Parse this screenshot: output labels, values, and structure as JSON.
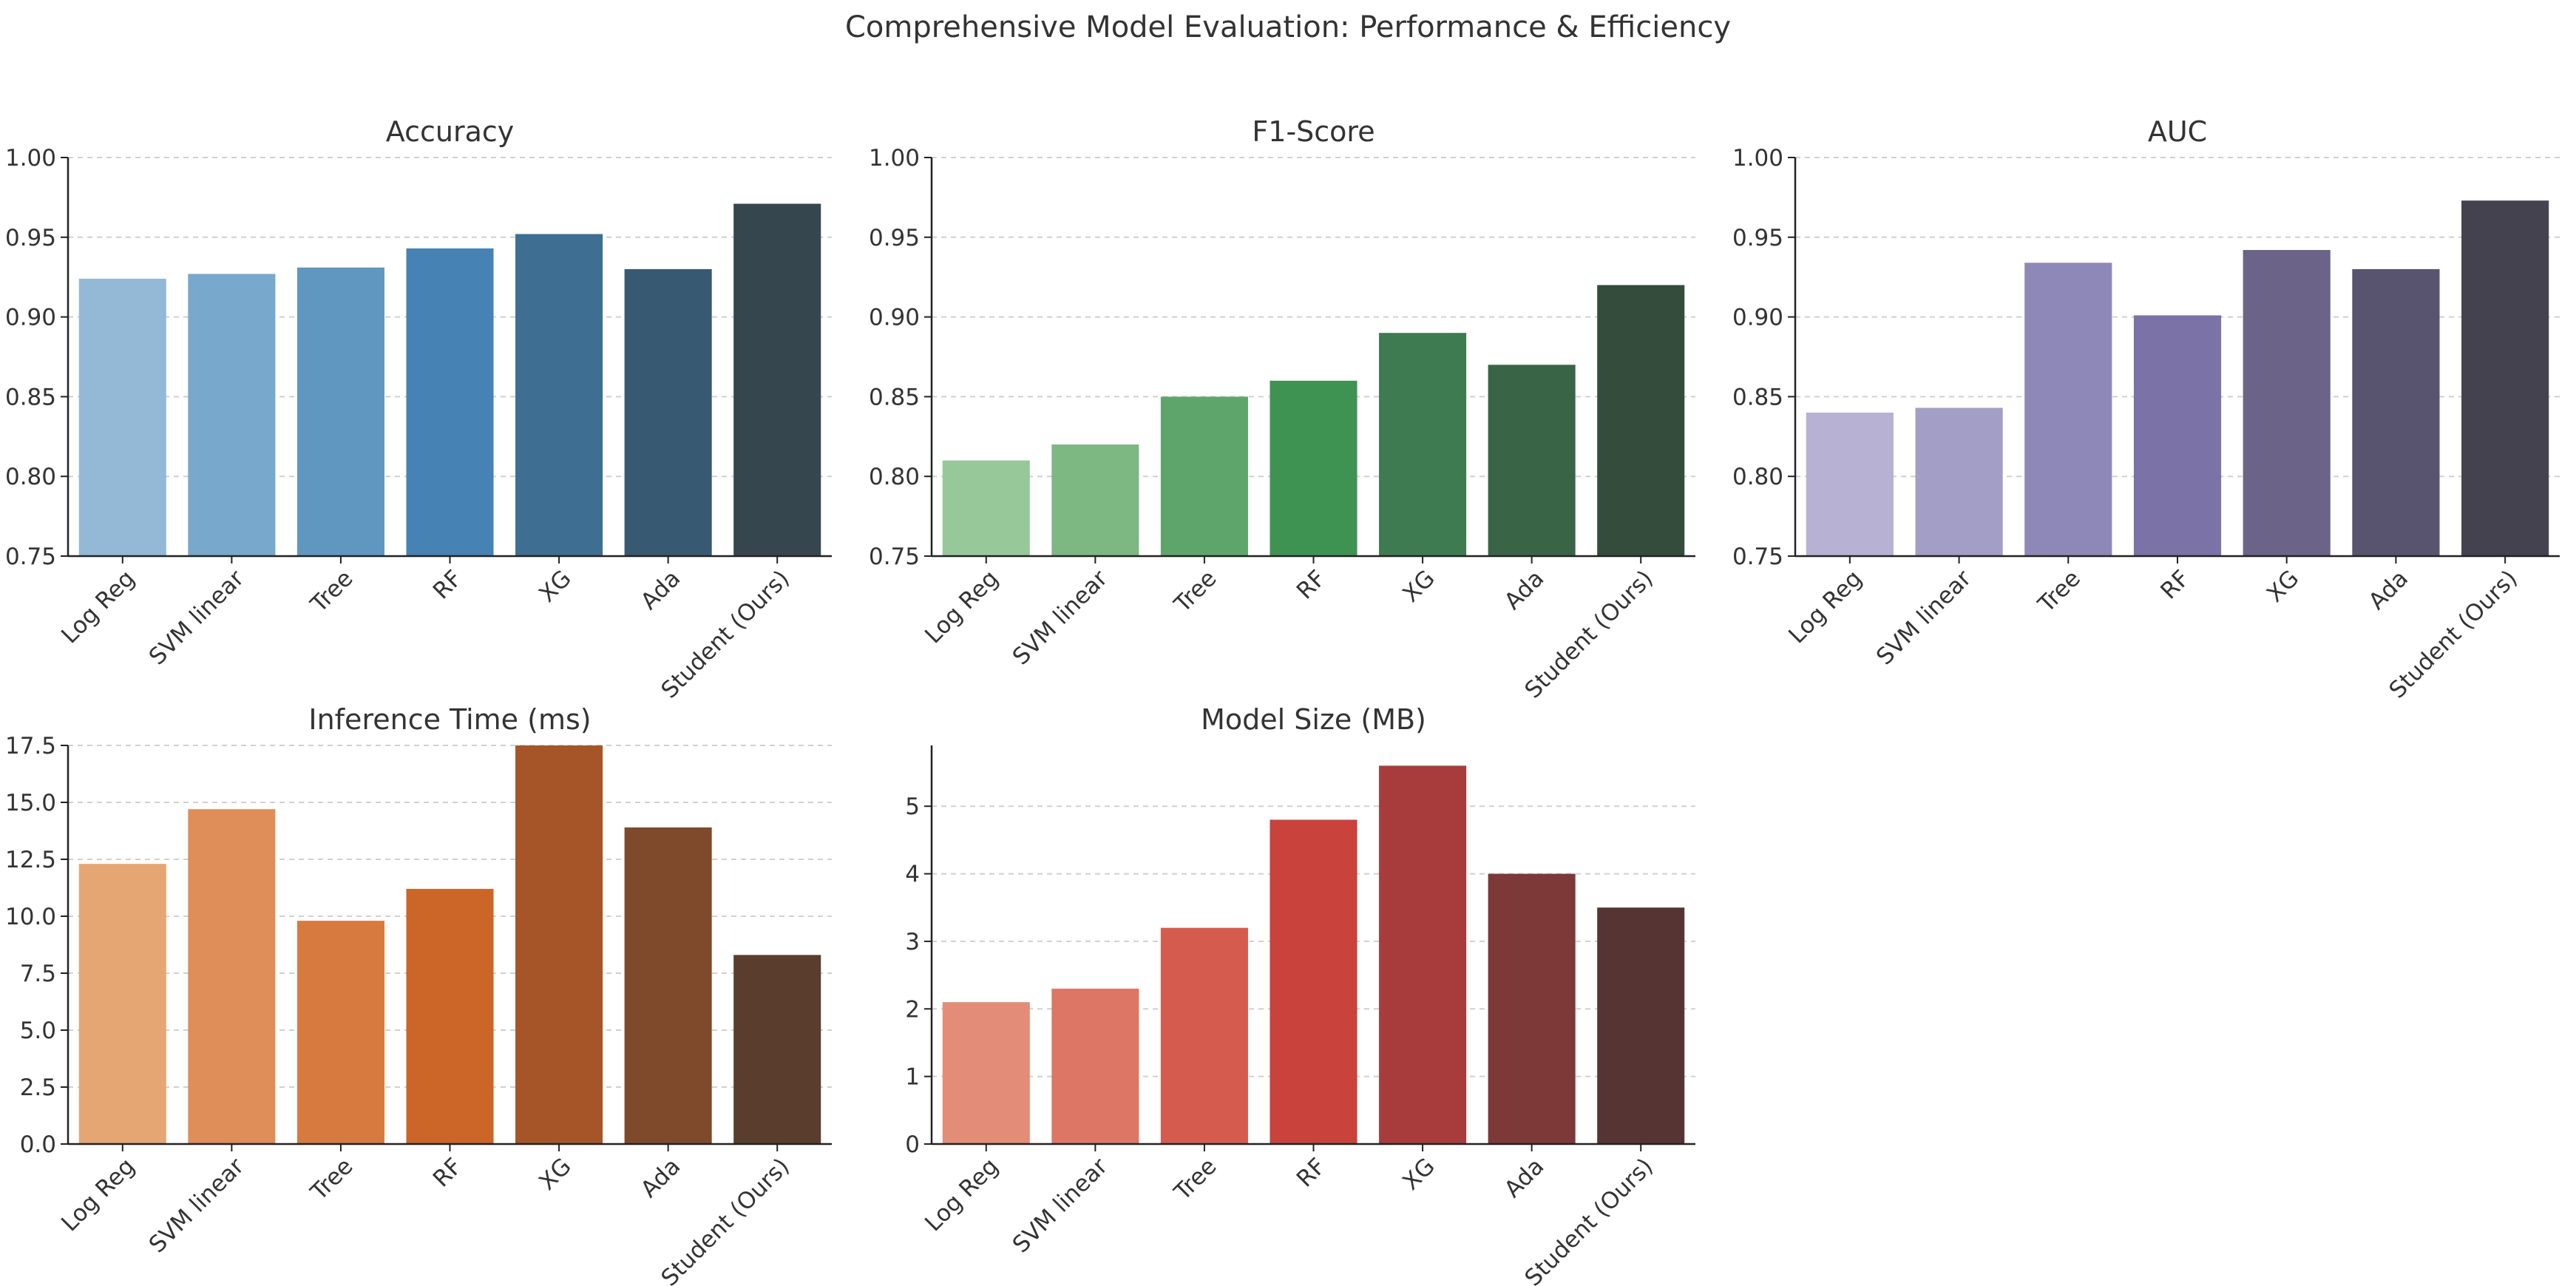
{
  "suptitle": "Comprehensive Model Evaluation: Performance & Efficiency",
  "chart_data": [
    {
      "type": "bar",
      "title": "Accuracy",
      "categories": [
        "Log Reg",
        "SVM linear",
        "Tree",
        "RF",
        "XG",
        "Ada",
        "Student (Ours)"
      ],
      "values": [
        0.924,
        0.927,
        0.931,
        0.943,
        0.952,
        0.93,
        0.971
      ],
      "ylim": [
        0.75,
        1.0
      ],
      "yticks": [
        "0.75",
        "0.80",
        "0.85",
        "0.90",
        "0.95",
        "1.00"
      ],
      "xlabel": "",
      "ylabel": "",
      "colors": [
        "#93b9d6",
        "#78a8cb",
        "#5f97c1",
        "#4683b4",
        "#3f6e93",
        "#385972",
        "#36464f"
      ]
    },
    {
      "type": "bar",
      "title": "F1-Score",
      "categories": [
        "Log Reg",
        "SVM linear",
        "Tree",
        "RF",
        "XG",
        "Ada",
        "Student (Ours)"
      ],
      "values": [
        0.81,
        0.82,
        0.85,
        0.86,
        0.89,
        0.87,
        0.92
      ],
      "ylim": [
        0.75,
        1.0
      ],
      "yticks": [
        "0.75",
        "0.80",
        "0.85",
        "0.90",
        "0.95",
        "1.00"
      ],
      "xlabel": "",
      "ylabel": "",
      "colors": [
        "#97c89a",
        "#7db782",
        "#5ea56b",
        "#3e9352",
        "#3f7b50",
        "#3a6446",
        "#334c3b"
      ]
    },
    {
      "type": "bar",
      "title": "AUC",
      "categories": [
        "Log Reg",
        "SVM linear",
        "Tree",
        "RF",
        "XG",
        "Ada",
        "Student (Ours)"
      ],
      "values": [
        0.84,
        0.843,
        0.934,
        0.901,
        0.942,
        0.93,
        0.973
      ],
      "ylim": [
        0.75,
        1.0
      ],
      "yticks": [
        "0.75",
        "0.80",
        "0.85",
        "0.90",
        "0.95",
        "1.00"
      ],
      "xlabel": "",
      "ylabel": "",
      "colors": [
        "#b7b2d3",
        "#a29ec5",
        "#8e88b8",
        "#7b72a8",
        "#6b6388",
        "#585470",
        "#45424f"
      ]
    },
    {
      "type": "bar",
      "title": "Inference Time (ms)",
      "categories": [
        "Log Reg",
        "SVM linear",
        "Tree",
        "RF",
        "XG",
        "Ada",
        "Student (Ours)"
      ],
      "values": [
        12.3,
        14.7,
        9.8,
        11.2,
        17.5,
        13.9,
        8.3
      ],
      "ylim": [
        0,
        17.5
      ],
      "yticks": [
        "0.0",
        "2.5",
        "5.0",
        "7.5",
        "10.0",
        "12.5",
        "15.0",
        "17.5"
      ],
      "xlabel": "",
      "ylabel": "",
      "colors": [
        "#e6a673",
        "#df8d59",
        "#d77a3f",
        "#cc6528",
        "#a65529",
        "#7e4a2b",
        "#5a3d2d"
      ]
    },
    {
      "type": "bar",
      "title": "Model Size (MB)",
      "categories": [
        "Log Reg",
        "SVM linear",
        "Tree",
        "RF",
        "XG",
        "Ada",
        "Student (Ours)"
      ],
      "values": [
        2.1,
        2.3,
        3.2,
        4.8,
        5.6,
        4.0,
        3.5
      ],
      "ylim": [
        0,
        5.9
      ],
      "yticks": [
        "0",
        "1",
        "2",
        "3",
        "4",
        "5"
      ],
      "ytick_values": [
        0,
        1,
        2,
        3,
        4,
        5
      ],
      "xlabel": "",
      "ylabel": "",
      "colors": [
        "#e38c78",
        "#de7665",
        "#d65b4f",
        "#c9423b",
        "#a83c3c",
        "#7d3937",
        "#573434"
      ]
    }
  ]
}
